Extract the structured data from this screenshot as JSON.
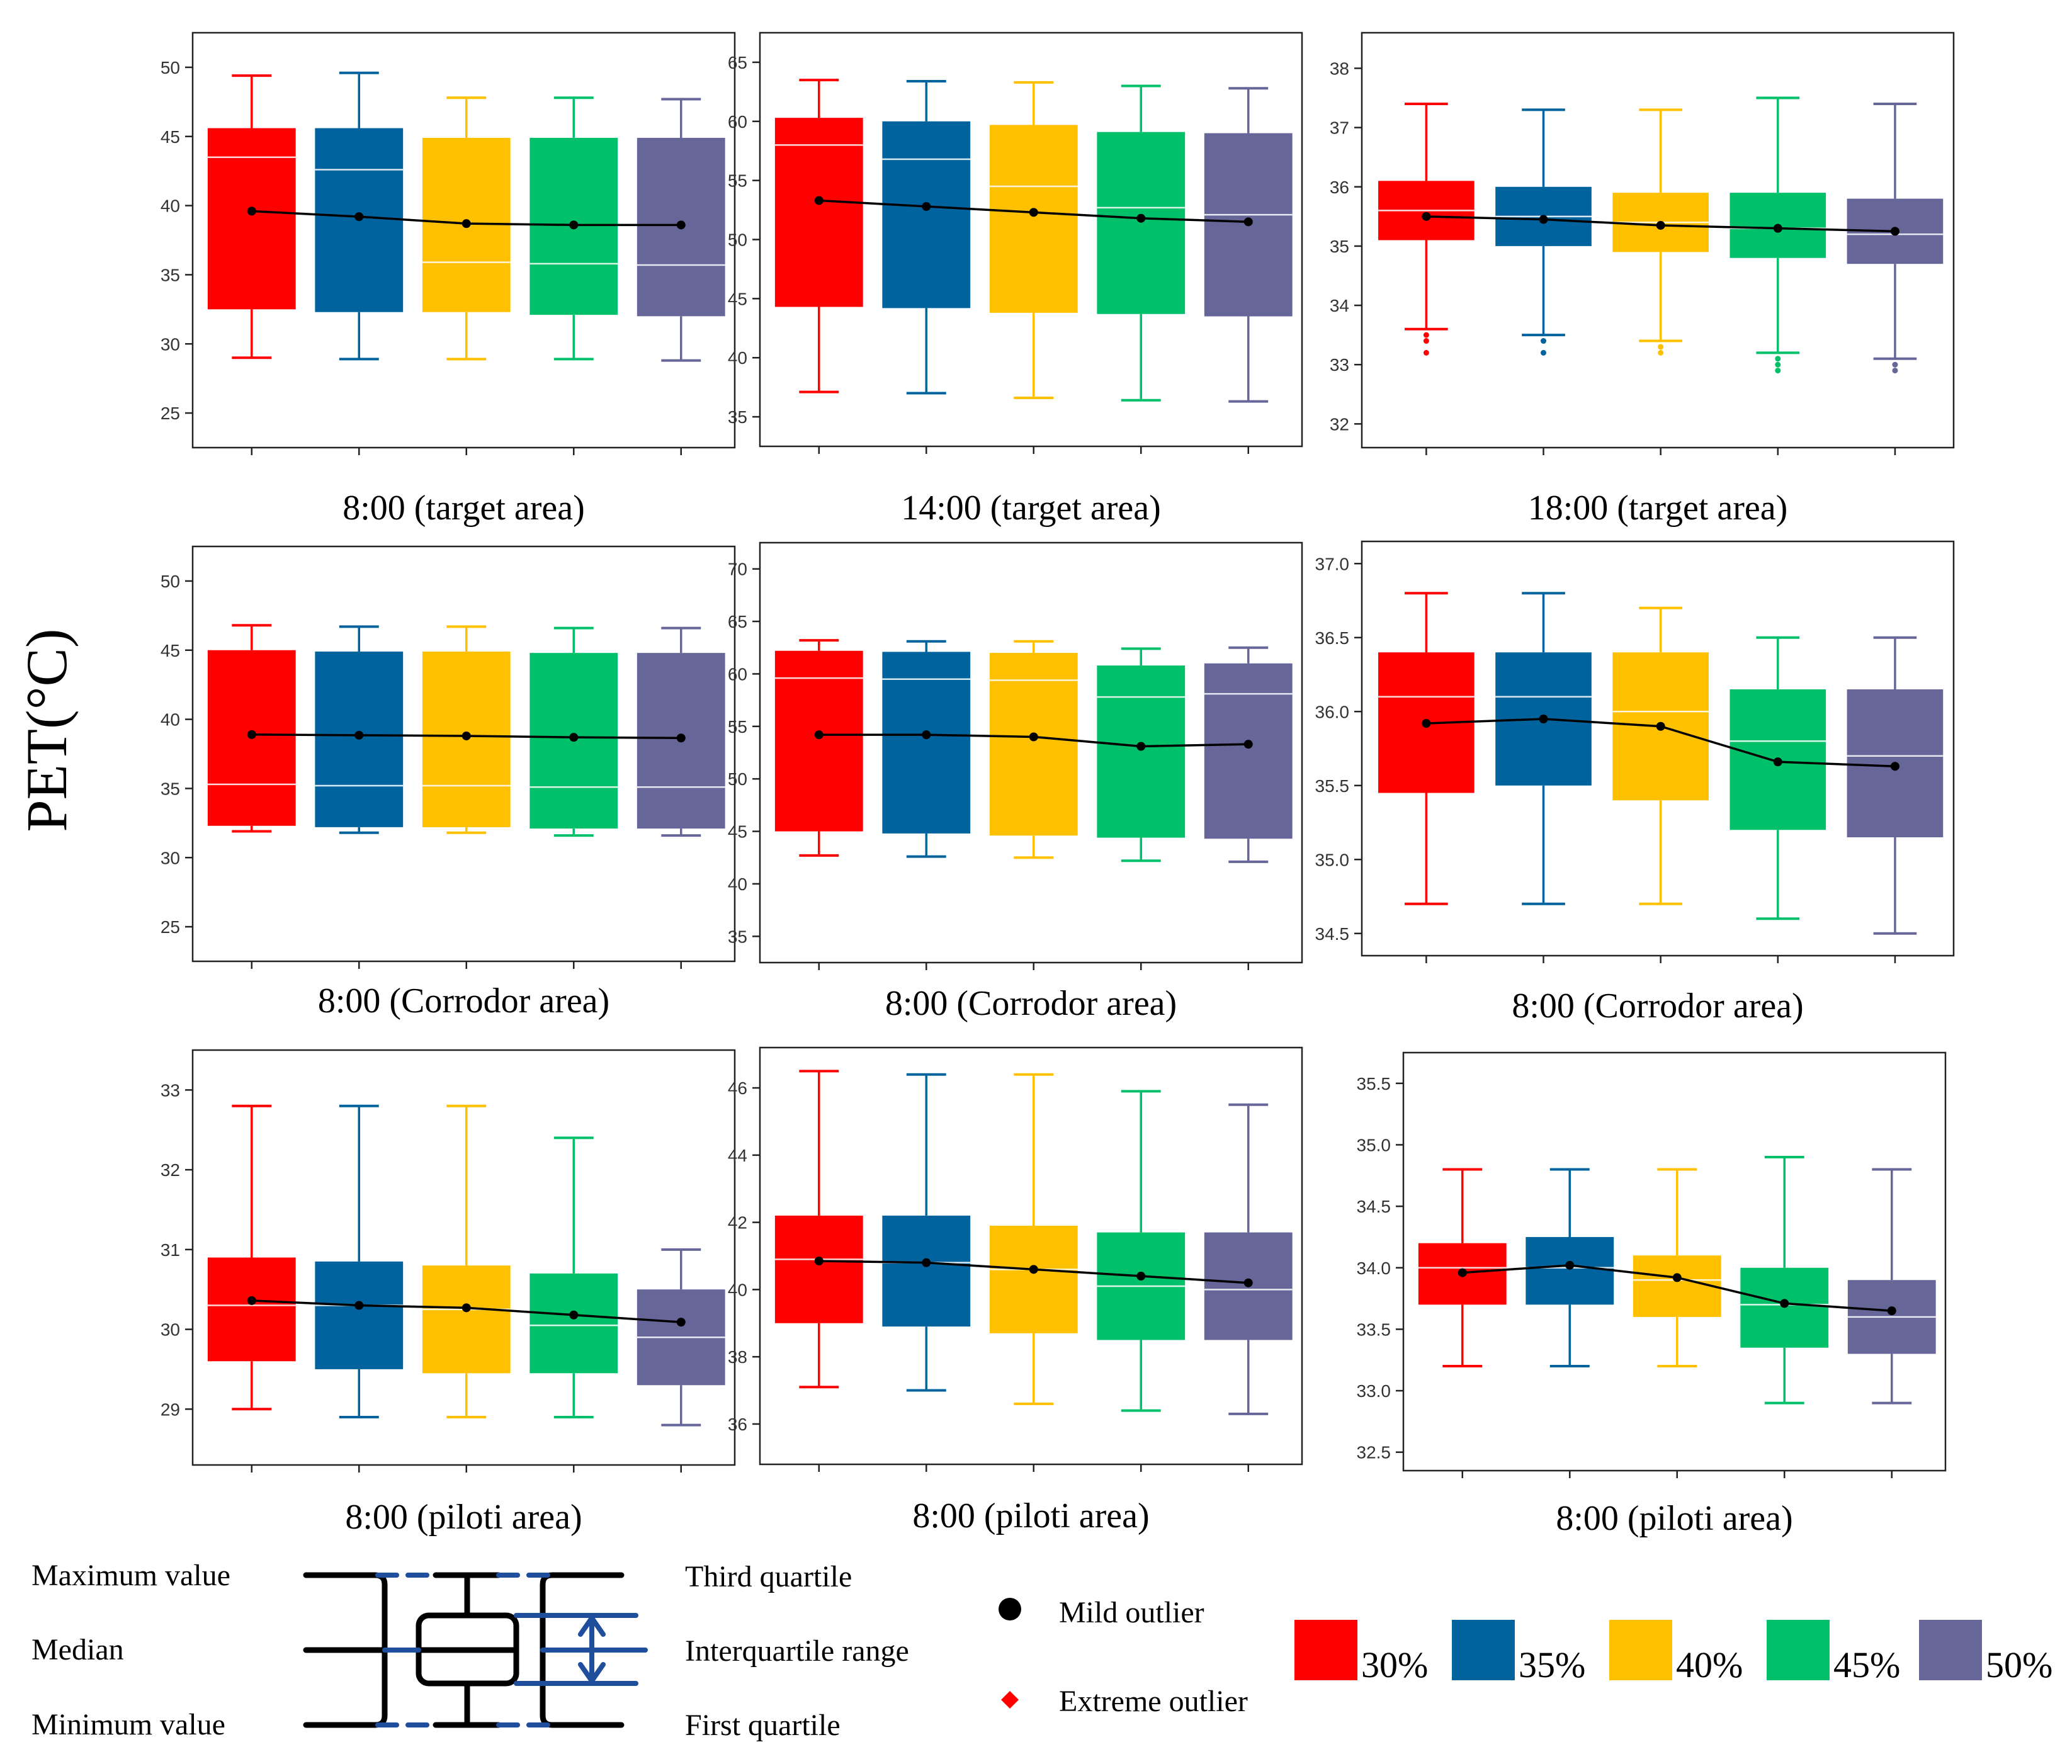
{
  "figure": {
    "ylabel": "PET(°C)",
    "box_key": {
      "maximum": "Maximum value",
      "median": "Median",
      "minimum": "Minimum value",
      "third_quartile": "Third quartile",
      "iqr": "Interquartile range",
      "first_quartile": "First quartile"
    },
    "outlier_key": {
      "mild": "Mild outlier",
      "extreme": "Extreme outlier"
    },
    "legend": [
      {
        "name": "30%",
        "color": "#ff0000"
      },
      {
        "name": "35%",
        "color": "#00639e"
      },
      {
        "name": "40%",
        "color": "#ffc000"
      },
      {
        "name": "45%",
        "color": "#00c06a"
      },
      {
        "name": "50%",
        "color": "#666699"
      }
    ]
  },
  "chart_data": [
    {
      "type": "box",
      "title": "8:00 (target area)",
      "ylim": [
        22.5,
        52.5
      ],
      "yticks": [
        "25",
        "30",
        "35",
        "40",
        "45",
        "50"
      ],
      "series": [
        {
          "name": "30%",
          "min": 29.0,
          "q1": 32.5,
          "median": 43.5,
          "q3": 45.6,
          "max": 49.4,
          "mean": 39.6,
          "outliers": []
        },
        {
          "name": "35%",
          "min": 28.9,
          "q1": 32.3,
          "median": 42.6,
          "q3": 45.6,
          "max": 49.6,
          "mean": 39.2,
          "outliers": []
        },
        {
          "name": "40%",
          "min": 28.9,
          "q1": 32.3,
          "median": 35.9,
          "q3": 44.9,
          "max": 47.8,
          "mean": 38.7,
          "outliers": []
        },
        {
          "name": "45%",
          "min": 28.9,
          "q1": 32.1,
          "median": 35.8,
          "q3": 44.9,
          "max": 47.8,
          "mean": 38.6,
          "outliers": []
        },
        {
          "name": "50%",
          "min": 28.8,
          "q1": 32.0,
          "median": 35.7,
          "q3": 44.9,
          "max": 47.7,
          "mean": 38.6,
          "outliers": []
        }
      ]
    },
    {
      "type": "box",
      "title": "14:00 (target area)",
      "ylim": [
        32.5,
        67.5
      ],
      "yticks": [
        "35",
        "40",
        "45",
        "50",
        "55",
        "60",
        "65"
      ],
      "series": [
        {
          "name": "30%",
          "min": 37.1,
          "q1": 44.3,
          "median": 58.0,
          "q3": 60.3,
          "max": 63.5,
          "mean": 53.3,
          "outliers": []
        },
        {
          "name": "35%",
          "min": 37.0,
          "q1": 44.2,
          "median": 56.8,
          "q3": 60.0,
          "max": 63.4,
          "mean": 52.8,
          "outliers": []
        },
        {
          "name": "40%",
          "min": 36.6,
          "q1": 43.8,
          "median": 54.5,
          "q3": 59.7,
          "max": 63.3,
          "mean": 52.3,
          "outliers": []
        },
        {
          "name": "45%",
          "min": 36.4,
          "q1": 43.7,
          "median": 52.7,
          "q3": 59.1,
          "max": 63.0,
          "mean": 51.8,
          "outliers": []
        },
        {
          "name": "50%",
          "min": 36.3,
          "q1": 43.5,
          "median": 52.1,
          "q3": 59.0,
          "max": 62.8,
          "mean": 51.5,
          "outliers": []
        }
      ]
    },
    {
      "type": "box",
      "title": "18:00 (target area)",
      "ylim": [
        31.6,
        38.6
      ],
      "yticks": [
        "32",
        "33",
        "34",
        "35",
        "36",
        "37",
        "38"
      ],
      "series": [
        {
          "name": "30%",
          "min": 33.6,
          "q1": 35.1,
          "median": 35.6,
          "q3": 36.1,
          "max": 37.4,
          "mean": 35.5,
          "outliers": [
            33.5,
            33.4,
            33.2
          ]
        },
        {
          "name": "35%",
          "min": 33.5,
          "q1": 35.0,
          "median": 35.5,
          "q3": 36.0,
          "max": 37.3,
          "mean": 35.45,
          "outliers": [
            33.4,
            33.2
          ]
        },
        {
          "name": "40%",
          "min": 33.4,
          "q1": 34.9,
          "median": 35.4,
          "q3": 35.9,
          "max": 37.3,
          "mean": 35.35,
          "outliers": [
            33.3,
            33.2
          ]
        },
        {
          "name": "45%",
          "min": 33.2,
          "q1": 34.8,
          "median": 35.3,
          "q3": 35.9,
          "max": 37.5,
          "mean": 35.3,
          "outliers": [
            33.1,
            33.0,
            32.9
          ]
        },
        {
          "name": "50%",
          "min": 33.1,
          "q1": 34.7,
          "median": 35.2,
          "q3": 35.8,
          "max": 37.4,
          "mean": 35.25,
          "outliers": [
            33.0,
            32.9
          ]
        }
      ]
    },
    {
      "type": "box",
      "title": "8:00 (Corrodor area)",
      "ylim": [
        22.5,
        52.5
      ],
      "yticks": [
        "25",
        "30",
        "35",
        "40",
        "45",
        "50"
      ],
      "series": [
        {
          "name": "30%",
          "min": 31.9,
          "q1": 32.3,
          "median": 35.3,
          "q3": 45.0,
          "max": 46.8,
          "mean": 38.9,
          "outliers": []
        },
        {
          "name": "35%",
          "min": 31.8,
          "q1": 32.2,
          "median": 35.2,
          "q3": 44.9,
          "max": 46.7,
          "mean": 38.85,
          "outliers": []
        },
        {
          "name": "40%",
          "min": 31.8,
          "q1": 32.2,
          "median": 35.2,
          "q3": 44.9,
          "max": 46.7,
          "mean": 38.8,
          "outliers": []
        },
        {
          "name": "45%",
          "min": 31.6,
          "q1": 32.1,
          "median": 35.1,
          "q3": 44.8,
          "max": 46.6,
          "mean": 38.7,
          "outliers": []
        },
        {
          "name": "50%",
          "min": 31.6,
          "q1": 32.1,
          "median": 35.1,
          "q3": 44.8,
          "max": 46.6,
          "mean": 38.65,
          "outliers": []
        }
      ]
    },
    {
      "type": "box",
      "title": "8:00 (Corrodor area)",
      "ylim": [
        32.5,
        72.5
      ],
      "yticks": [
        "35",
        "40",
        "45",
        "50",
        "55",
        "60",
        "65",
        "70"
      ],
      "series": [
        {
          "name": "30%",
          "min": 42.7,
          "q1": 45.0,
          "median": 59.6,
          "q3": 62.2,
          "max": 63.2,
          "mean": 54.2,
          "outliers": []
        },
        {
          "name": "35%",
          "min": 42.6,
          "q1": 44.8,
          "median": 59.5,
          "q3": 62.1,
          "max": 63.1,
          "mean": 54.2,
          "outliers": []
        },
        {
          "name": "40%",
          "min": 42.5,
          "q1": 44.6,
          "median": 59.4,
          "q3": 62.0,
          "max": 63.1,
          "mean": 54.0,
          "outliers": []
        },
        {
          "name": "45%",
          "min": 42.2,
          "q1": 44.4,
          "median": 57.8,
          "q3": 60.8,
          "max": 62.4,
          "mean": 53.1,
          "outliers": []
        },
        {
          "name": "50%",
          "min": 42.1,
          "q1": 44.3,
          "median": 58.1,
          "q3": 61.0,
          "max": 62.5,
          "mean": 53.3,
          "outliers": []
        }
      ]
    },
    {
      "type": "box",
      "title": "8:00 (Corrodor area)",
      "ylim": [
        34.35,
        37.15
      ],
      "yticks": [
        "34.5",
        "35.0",
        "35.5",
        "36.0",
        "36.5",
        "37.0"
      ],
      "series": [
        {
          "name": "30%",
          "min": 34.7,
          "q1": 35.45,
          "median": 36.1,
          "q3": 36.4,
          "max": 36.8,
          "mean": 35.92,
          "outliers": []
        },
        {
          "name": "35%",
          "min": 34.7,
          "q1": 35.5,
          "median": 36.1,
          "q3": 36.4,
          "max": 36.8,
          "mean": 35.95,
          "outliers": []
        },
        {
          "name": "40%",
          "min": 34.7,
          "q1": 35.4,
          "median": 36.0,
          "q3": 36.4,
          "max": 36.7,
          "mean": 35.9,
          "outliers": []
        },
        {
          "name": "45%",
          "min": 34.6,
          "q1": 35.2,
          "median": 35.8,
          "q3": 36.15,
          "max": 36.5,
          "mean": 35.66,
          "outliers": []
        },
        {
          "name": "50%",
          "min": 34.5,
          "q1": 35.15,
          "median": 35.7,
          "q3": 36.15,
          "max": 36.5,
          "mean": 35.63,
          "outliers": []
        }
      ]
    },
    {
      "type": "box",
      "title": "8:00 (piloti area)",
      "ylim": [
        28.3,
        33.5
      ],
      "yticks": [
        "29",
        "30",
        "31",
        "32",
        "33"
      ],
      "series": [
        {
          "name": "30%",
          "min": 29.0,
          "q1": 29.6,
          "median": 30.3,
          "q3": 30.9,
          "max": 32.8,
          "mean": 30.36,
          "outliers": []
        },
        {
          "name": "35%",
          "min": 28.9,
          "q1": 29.5,
          "median": 30.3,
          "q3": 30.85,
          "max": 32.8,
          "mean": 30.3,
          "outliers": []
        },
        {
          "name": "40%",
          "min": 28.9,
          "q1": 29.45,
          "median": 30.25,
          "q3": 30.8,
          "max": 32.8,
          "mean": 30.27,
          "outliers": []
        },
        {
          "name": "45%",
          "min": 28.9,
          "q1": 29.45,
          "median": 30.05,
          "q3": 30.7,
          "max": 32.4,
          "mean": 30.18,
          "outliers": []
        },
        {
          "name": "50%",
          "min": 28.8,
          "q1": 29.3,
          "median": 29.9,
          "q3": 30.5,
          "max": 31.0,
          "mean": 30.09,
          "outliers": []
        }
      ]
    },
    {
      "type": "box",
      "title": "8:00 (piloti area)",
      "ylim": [
        34.8,
        47.2
      ],
      "yticks": [
        "36",
        "38",
        "40",
        "42",
        "44",
        "46"
      ],
      "series": [
        {
          "name": "30%",
          "min": 37.1,
          "q1": 39.0,
          "median": 40.9,
          "q3": 42.2,
          "max": 46.5,
          "mean": 40.85,
          "outliers": []
        },
        {
          "name": "35%",
          "min": 37.0,
          "q1": 38.9,
          "median": 40.8,
          "q3": 42.2,
          "max": 46.4,
          "mean": 40.8,
          "outliers": []
        },
        {
          "name": "40%",
          "min": 36.6,
          "q1": 38.7,
          "median": 40.6,
          "q3": 41.9,
          "max": 46.4,
          "mean": 40.6,
          "outliers": []
        },
        {
          "name": "45%",
          "min": 36.4,
          "q1": 38.5,
          "median": 40.1,
          "q3": 41.7,
          "max": 45.9,
          "mean": 40.4,
          "outliers": []
        },
        {
          "name": "50%",
          "min": 36.3,
          "q1": 38.5,
          "median": 40.0,
          "q3": 41.7,
          "max": 45.5,
          "mean": 40.2,
          "outliers": []
        }
      ]
    },
    {
      "type": "box",
      "title": "8:00 (piloti area)",
      "ylim": [
        32.35,
        35.75
      ],
      "yticks": [
        "32.5",
        "33.0",
        "33.5",
        "34.0",
        "34.5",
        "35.0",
        "35.5"
      ],
      "series": [
        {
          "name": "30%",
          "min": 33.2,
          "q1": 33.7,
          "median": 34.0,
          "q3": 34.2,
          "max": 34.8,
          "mean": 33.96,
          "outliers": []
        },
        {
          "name": "35%",
          "min": 33.2,
          "q1": 33.7,
          "median": 34.0,
          "q3": 34.25,
          "max": 34.8,
          "mean": 34.02,
          "outliers": []
        },
        {
          "name": "40%",
          "min": 33.2,
          "q1": 33.6,
          "median": 33.9,
          "q3": 34.1,
          "max": 34.8,
          "mean": 33.92,
          "outliers": []
        },
        {
          "name": "45%",
          "min": 32.9,
          "q1": 33.35,
          "median": 33.7,
          "q3": 34.0,
          "max": 34.9,
          "mean": 33.71,
          "outliers": []
        },
        {
          "name": "50%",
          "min": 32.9,
          "q1": 33.3,
          "median": 33.6,
          "q3": 33.9,
          "max": 34.8,
          "mean": 33.65,
          "outliers": []
        }
      ]
    }
  ]
}
